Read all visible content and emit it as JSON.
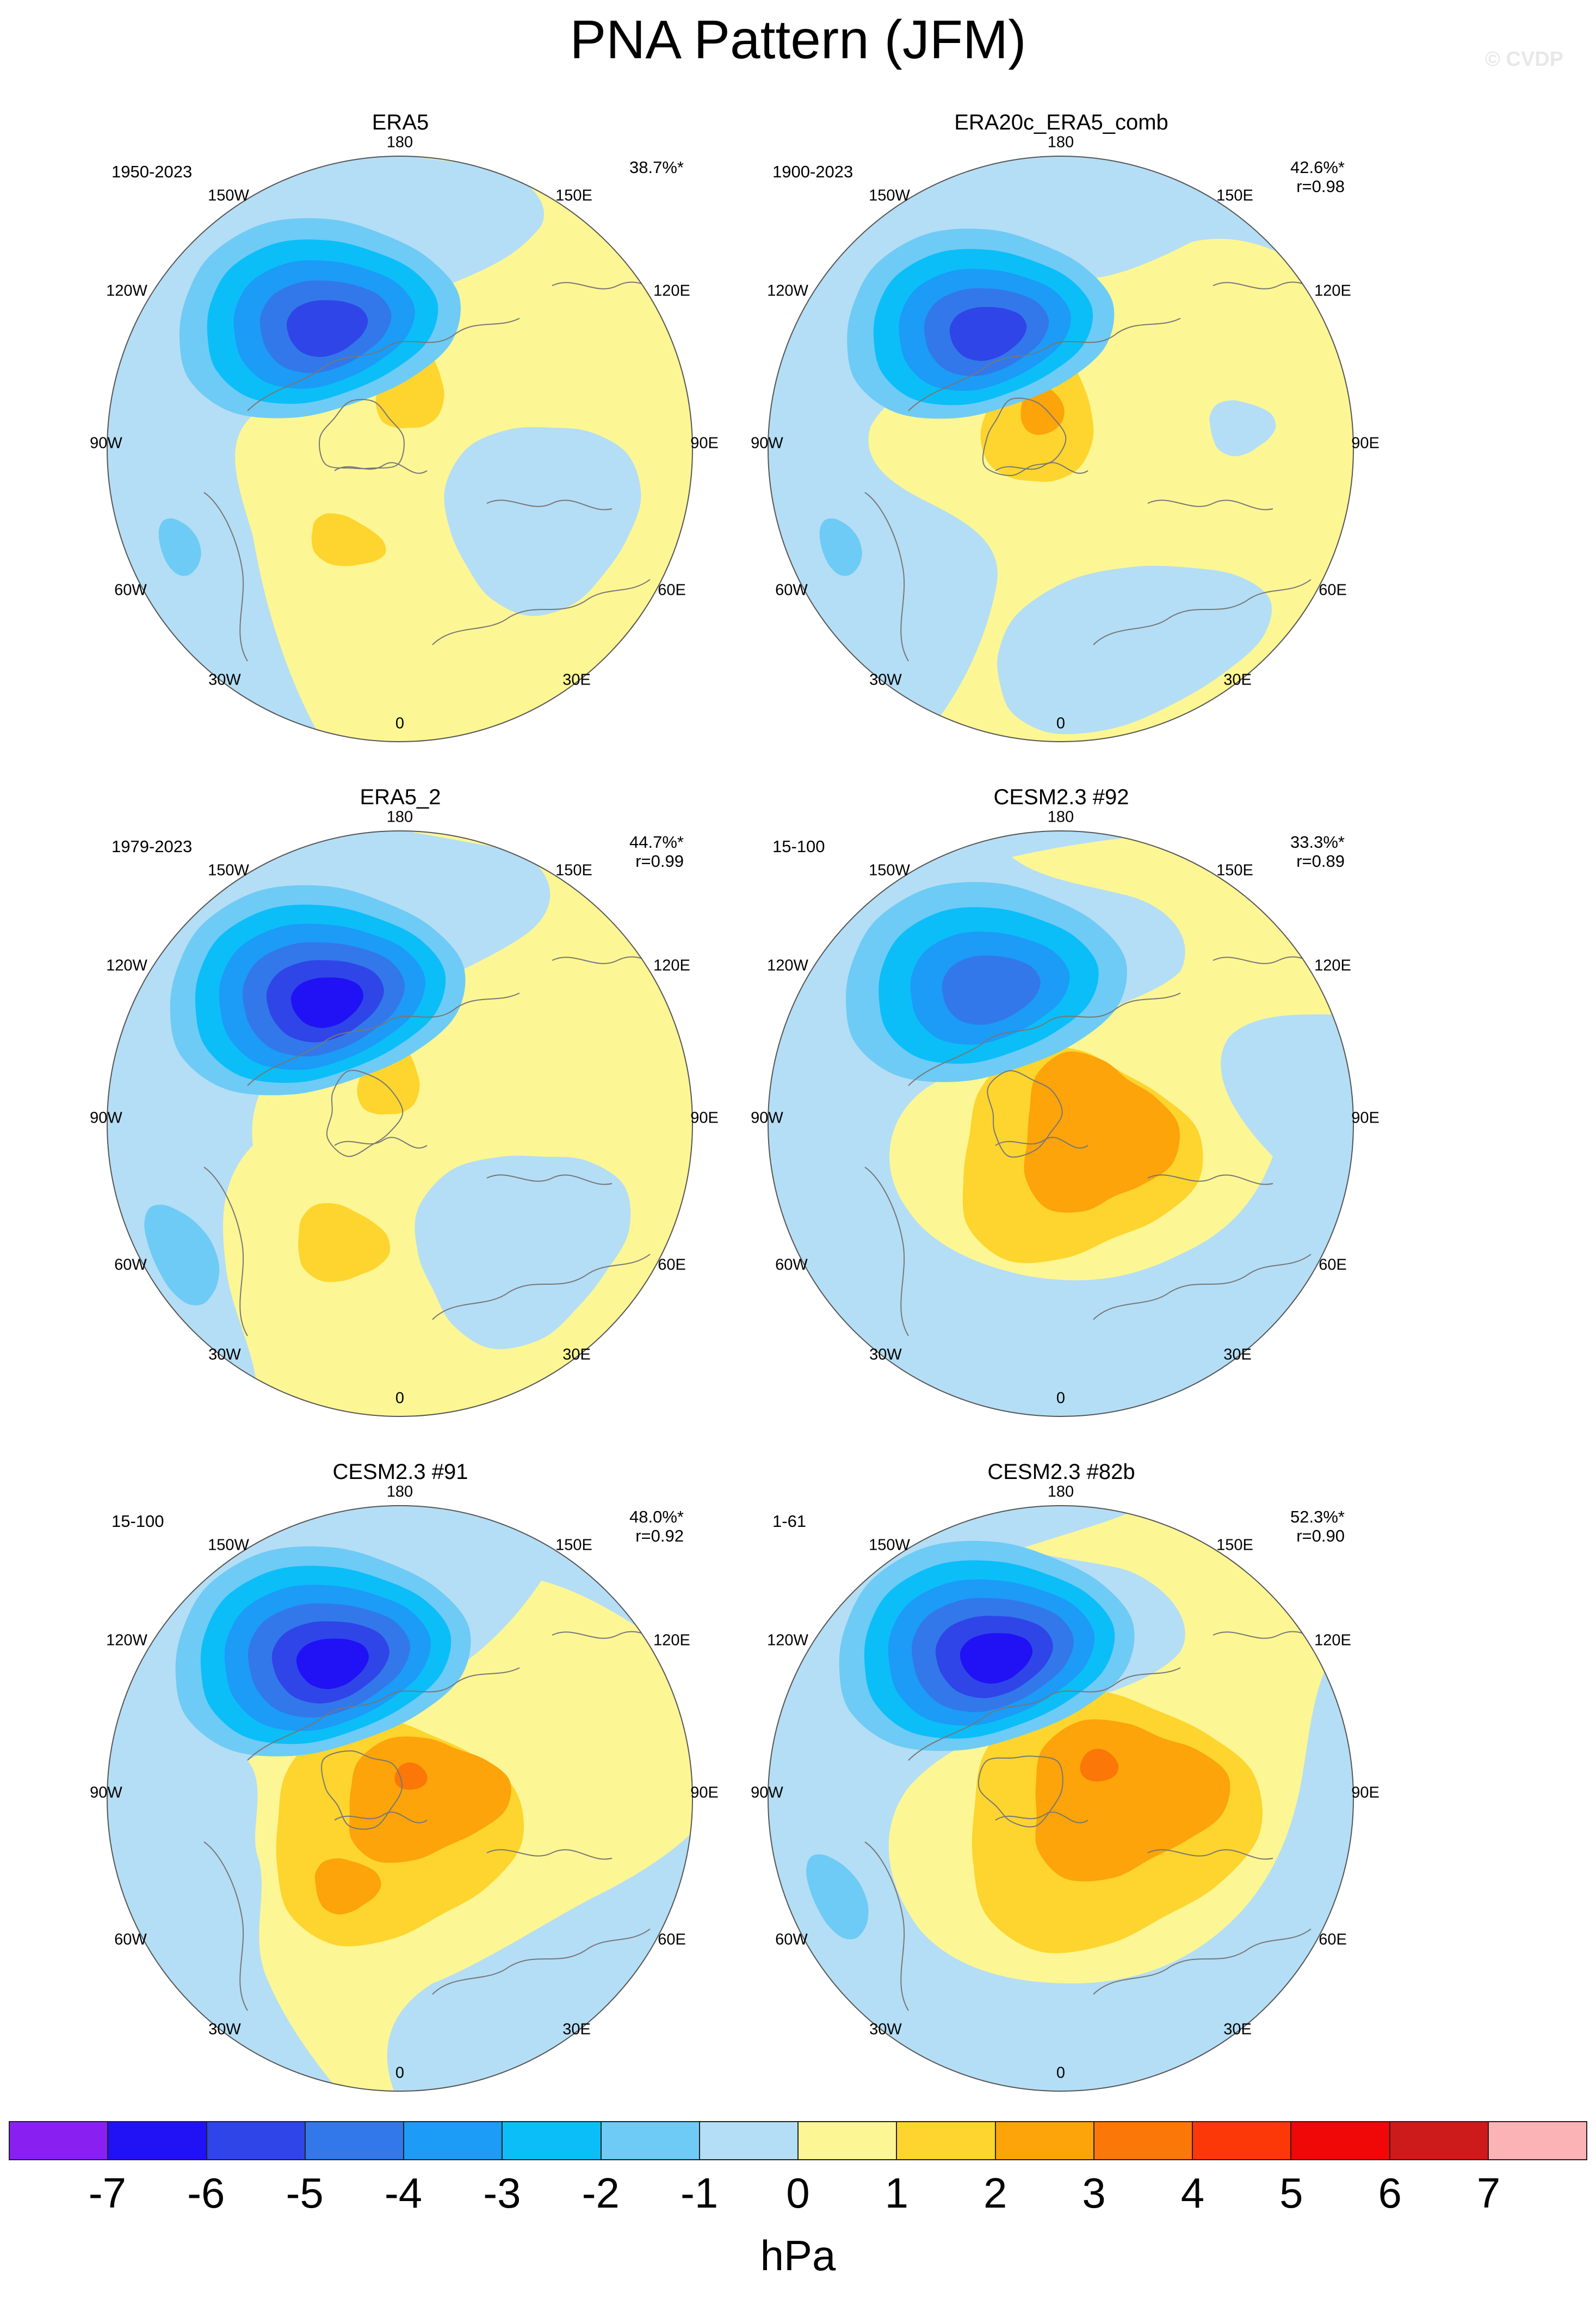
{
  "title": "PNA Pattern (JFM)",
  "watermark": "© CVDP",
  "longitude_labels": [
    "180",
    "150E",
    "120E",
    "90E",
    "60E",
    "30E",
    "0",
    "30W",
    "60W",
    "90W",
    "120W",
    "150W"
  ],
  "panels": [
    {
      "title": "ERA5",
      "period": "1950-2023",
      "variance": "38.7%*",
      "correlation": ""
    },
    {
      "title": "ERA20c_ERA5_comb",
      "period": "1900-2023",
      "variance": "42.6%*",
      "correlation": "r=0.98"
    },
    {
      "title": "ERA5_2",
      "period": "1979-2023",
      "variance": "44.7%*",
      "correlation": "r=0.99"
    },
    {
      "title": "CESM2.3 #92",
      "period": "15-100",
      "variance": "33.3%*",
      "correlation": "r=0.89"
    },
    {
      "title": "CESM2.3 #91",
      "period": "15-100",
      "variance": "48.0%*",
      "correlation": "r=0.92"
    },
    {
      "title": "CESM2.3 #82b",
      "period": "1-61",
      "variance": "52.3%*",
      "correlation": "r=0.90"
    }
  ],
  "colorbar": {
    "units": "hPa",
    "labels": [
      "-7",
      "-6",
      "-5",
      "-4",
      "-3",
      "-2",
      "-1",
      "0",
      "1",
      "2",
      "3",
      "4",
      "5",
      "6",
      "7"
    ],
    "colors": [
      "#8a1ff2",
      "#2012f5",
      "#2f45e8",
      "#3278ea",
      "#1c9bf7",
      "#0bbef8",
      "#6ecbf5",
      "#b4def5",
      "#fdf694",
      "#fdd52e",
      "#fca409",
      "#fb7707",
      "#fc3708",
      "#f00707",
      "#cd1a1a",
      "#fcb3b5"
    ]
  }
}
